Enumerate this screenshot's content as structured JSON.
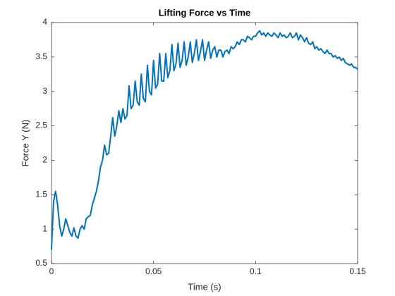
{
  "chart_data": {
    "type": "line",
    "title": "Lifting Force vs Time",
    "x_label": "Time (s)",
    "y_label": "Force Y (N)",
    "color": "#0072bd",
    "x": [
      0,
      0.001,
      0.002,
      0.003,
      0.004,
      0.005,
      0.006,
      0.007,
      0.008,
      0.009,
      0.01,
      0.011,
      0.012,
      0.013,
      0.014,
      0.015,
      0.016,
      0.017,
      0.018,
      0.019,
      0.02,
      0.021,
      0.022,
      0.023,
      0.024,
      0.025,
      0.026,
      0.027,
      0.028,
      0.029,
      0.03,
      0.031,
      0.032,
      0.033,
      0.034,
      0.035,
      0.036,
      0.037,
      0.038,
      0.039,
      0.04,
      0.041,
      0.042,
      0.043,
      0.044,
      0.045,
      0.046,
      0.047,
      0.048,
      0.049,
      0.05,
      0.051,
      0.052,
      0.053,
      0.054,
      0.055,
      0.056,
      0.057,
      0.058,
      0.059,
      0.06,
      0.061,
      0.062,
      0.063,
      0.064,
      0.065,
      0.066,
      0.067,
      0.068,
      0.069,
      0.07,
      0.071,
      0.072,
      0.073,
      0.074,
      0.075,
      0.076,
      0.077,
      0.078,
      0.079,
      0.08,
      0.081,
      0.082,
      0.083,
      0.084,
      0.085,
      0.086,
      0.087,
      0.088,
      0.089,
      0.09,
      0.091,
      0.092,
      0.093,
      0.094,
      0.095,
      0.096,
      0.097,
      0.098,
      0.099,
      0.1,
      0.101,
      0.102,
      0.103,
      0.104,
      0.105,
      0.106,
      0.107,
      0.108,
      0.109,
      0.11,
      0.111,
      0.112,
      0.113,
      0.114,
      0.115,
      0.116,
      0.117,
      0.118,
      0.119,
      0.12,
      0.121,
      0.122,
      0.123,
      0.124,
      0.125,
      0.126,
      0.127,
      0.128,
      0.129,
      0.13,
      0.131,
      0.132,
      0.133,
      0.134,
      0.135,
      0.136,
      0.137,
      0.138,
      0.139,
      0.14,
      0.141,
      0.142,
      0.143,
      0.144,
      0.145,
      0.146,
      0.147,
      0.148,
      0.149,
      0.15
    ],
    "values": [
      0.7,
      1.4,
      1.55,
      1.35,
      1.05,
      0.9,
      1.0,
      1.15,
      1.05,
      0.95,
      0.9,
      1.02,
      0.9,
      0.87,
      1.0,
      1.05,
      1.0,
      1.15,
      1.18,
      1.2,
      1.35,
      1.45,
      1.55,
      1.7,
      1.9,
      2.0,
      2.22,
      2.08,
      2.1,
      2.35,
      2.62,
      2.35,
      2.5,
      2.72,
      2.55,
      2.75,
      2.6,
      2.65,
      3.08,
      2.75,
      2.8,
      3.15,
      2.85,
      2.8,
      3.25,
      2.9,
      2.85,
      3.38,
      3.0,
      2.95,
      3.45,
      3.05,
      3.1,
      3.55,
      3.15,
      3.15,
      3.55,
      3.2,
      3.3,
      3.68,
      3.3,
      3.4,
      3.7,
      3.35,
      3.45,
      3.72,
      3.38,
      3.5,
      3.72,
      3.42,
      3.55,
      3.75,
      3.45,
      3.58,
      3.75,
      3.45,
      3.6,
      3.72,
      3.48,
      3.6,
      3.65,
      3.5,
      3.6,
      3.6,
      3.5,
      3.58,
      3.6,
      3.55,
      3.65,
      3.62,
      3.65,
      3.72,
      3.68,
      3.75,
      3.75,
      3.72,
      3.8,
      3.78,
      3.75,
      3.8,
      3.8,
      3.85,
      3.88,
      3.82,
      3.85,
      3.8,
      3.85,
      3.82,
      3.8,
      3.85,
      3.82,
      3.78,
      3.85,
      3.8,
      3.82,
      3.78,
      3.8,
      3.85,
      3.78,
      3.8,
      3.85,
      3.75,
      3.82,
      3.78,
      3.72,
      3.78,
      3.7,
      3.68,
      3.72,
      3.62,
      3.65,
      3.6,
      3.62,
      3.58,
      3.55,
      3.6,
      3.55,
      3.55,
      3.5,
      3.52,
      3.48,
      3.5,
      3.45,
      3.48,
      3.42,
      3.4,
      3.38,
      3.4,
      3.35,
      3.35,
      3.32
    ],
    "xlim": [
      0,
      0.15
    ],
    "xticks": [
      0,
      0.05,
      0.1,
      0.15
    ],
    "ylim": [
      0.5,
      4
    ],
    "yticks": [
      0.5,
      1,
      1.5,
      2,
      2.5,
      3,
      3.5,
      4
    ],
    "grid": false
  }
}
